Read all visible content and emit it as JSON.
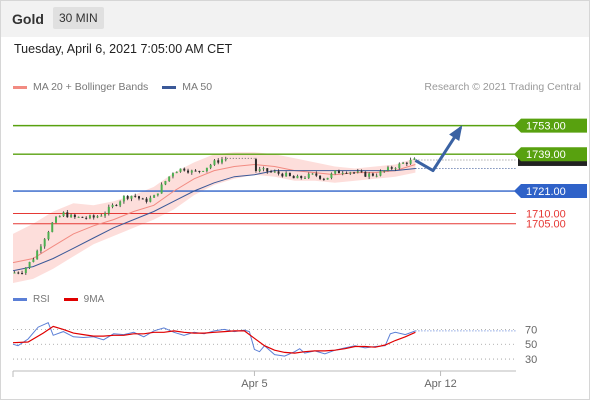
{
  "header": {
    "instrument": "Gold",
    "timeframe": "30 MIN"
  },
  "datetime": "Tuesday, April 6, 2021 7:05:00 AM CET",
  "legend": [
    {
      "label": "MA 20 + Bollinger Bands",
      "color": "#f28b82"
    },
    {
      "label": "MA 50",
      "color": "#3b5998"
    }
  ],
  "research": "Research © 2021 Trading Central",
  "colors": {
    "resistance": "#58a10f",
    "pivot": "#2f62c8",
    "support": "#e53935",
    "ma20": "#f28b82",
    "ma50": "#3b5998",
    "band": "#fdd8d5",
    "rsi": "#5b7fd6",
    "rsi_ma": "#e00000",
    "arrow": "#3a62a3"
  },
  "chart_data": [
    {
      "type": "candlestick",
      "ylim": [
        1676,
        1767
      ],
      "xlim": [
        0,
        100
      ],
      "x_ticks": [
        {
          "x": 48,
          "label": "Apr 5"
        },
        {
          "x": 85,
          "label": "Apr 12"
        }
      ],
      "levels": [
        {
          "value": 1753.0,
          "label": "1753.00",
          "kind": "resistance",
          "style": "tag"
        },
        {
          "value": 1739.0,
          "label": "1739.00",
          "kind": "resistance",
          "style": "tag"
        },
        {
          "value": 1721.0,
          "label": "1721.00",
          "kind": "pivot",
          "style": "tag"
        },
        {
          "value": 1710.0,
          "label": "1710.00",
          "kind": "support",
          "style": "text"
        },
        {
          "value": 1705.0,
          "label": "1705.00",
          "kind": "support",
          "style": "text"
        }
      ],
      "last_price": 1736.2,
      "scenario_path": [
        [
          80,
          1736
        ],
        [
          83.5,
          1731
        ],
        [
          89,
          1752
        ]
      ],
      "close_path": [
        [
          0,
          1681
        ],
        [
          2,
          1682
        ],
        [
          4,
          1688
        ],
        [
          6,
          1697
        ],
        [
          8,
          1706
        ],
        [
          10,
          1710
        ],
        [
          12,
          1708
        ],
        [
          14,
          1708
        ],
        [
          16,
          1708
        ],
        [
          18,
          1710
        ],
        [
          20,
          1714
        ],
        [
          22,
          1718
        ],
        [
          24,
          1719
        ],
        [
          26,
          1716
        ],
        [
          28,
          1718
        ],
        [
          30,
          1725
        ],
        [
          32,
          1731
        ],
        [
          34,
          1732
        ],
        [
          36,
          1730
        ],
        [
          38,
          1732
        ],
        [
          40,
          1735
        ],
        [
          42,
          1737
        ],
        [
          44,
          1735
        ],
        [
          46,
          1735
        ],
        [
          48,
          1731
        ],
        [
          50,
          1731
        ],
        [
          52,
          1730
        ],
        [
          54,
          1729
        ],
        [
          56,
          1727
        ],
        [
          58,
          1728
        ],
        [
          60,
          1729
        ],
        [
          62,
          1727
        ],
        [
          64,
          1730
        ],
        [
          66,
          1731
        ],
        [
          68,
          1730
        ],
        [
          70,
          1729
        ],
        [
          72,
          1729
        ],
        [
          74,
          1731
        ],
        [
          76,
          1733
        ],
        [
          78,
          1735
        ],
        [
          80,
          1736.2
        ]
      ],
      "gaps": [
        [
          42.5,
          48
        ]
      ],
      "ma20": [
        [
          0,
          1686
        ],
        [
          4,
          1688
        ],
        [
          8,
          1694
        ],
        [
          12,
          1700
        ],
        [
          16,
          1704
        ],
        [
          20,
          1707
        ],
        [
          24,
          1711
        ],
        [
          28,
          1714
        ],
        [
          32,
          1721
        ],
        [
          36,
          1727
        ],
        [
          40,
          1731
        ],
        [
          44,
          1733
        ],
        [
          48,
          1734
        ],
        [
          52,
          1733
        ],
        [
          56,
          1731
        ],
        [
          60,
          1730
        ],
        [
          64,
          1729
        ],
        [
          68,
          1730
        ],
        [
          72,
          1730
        ],
        [
          76,
          1731
        ],
        [
          80,
          1734
        ]
      ],
      "ma50": [
        [
          0,
          1682
        ],
        [
          4,
          1684
        ],
        [
          8,
          1688
        ],
        [
          12,
          1693
        ],
        [
          16,
          1698
        ],
        [
          20,
          1703
        ],
        [
          24,
          1707
        ],
        [
          28,
          1711
        ],
        [
          32,
          1716
        ],
        [
          36,
          1721
        ],
        [
          40,
          1725
        ],
        [
          44,
          1728
        ],
        [
          48,
          1729
        ],
        [
          52,
          1731
        ],
        [
          56,
          1731
        ],
        [
          60,
          1731
        ],
        [
          64,
          1731
        ],
        [
          68,
          1731
        ],
        [
          72,
          1731
        ],
        [
          76,
          1731
        ],
        [
          80,
          1732
        ]
      ],
      "bb_upper": [
        [
          0,
          1700
        ],
        [
          4,
          1705
        ],
        [
          8,
          1711
        ],
        [
          12,
          1715
        ],
        [
          16,
          1714
        ],
        [
          20,
          1716
        ],
        [
          24,
          1719
        ],
        [
          28,
          1723
        ],
        [
          32,
          1730
        ],
        [
          36,
          1735
        ],
        [
          40,
          1739
        ],
        [
          44,
          1740
        ],
        [
          48,
          1740
        ],
        [
          52,
          1739
        ],
        [
          56,
          1737
        ],
        [
          60,
          1735
        ],
        [
          64,
          1733
        ],
        [
          68,
          1732
        ],
        [
          72,
          1733
        ],
        [
          76,
          1734
        ],
        [
          80,
          1737
        ]
      ],
      "bb_lower": [
        [
          0,
          1676
        ],
        [
          4,
          1678
        ],
        [
          8,
          1683
        ],
        [
          12,
          1689
        ],
        [
          16,
          1695
        ],
        [
          20,
          1699
        ],
        [
          24,
          1703
        ],
        [
          28,
          1707
        ],
        [
          32,
          1712
        ],
        [
          36,
          1719
        ],
        [
          40,
          1724
        ],
        [
          44,
          1727
        ],
        [
          48,
          1729
        ],
        [
          52,
          1728
        ],
        [
          56,
          1726
        ],
        [
          60,
          1726
        ],
        [
          64,
          1725
        ],
        [
          68,
          1726
        ],
        [
          72,
          1727
        ],
        [
          76,
          1728
        ],
        [
          80,
          1730
        ]
      ]
    },
    {
      "type": "line",
      "title": "RSI",
      "ylim": [
        18,
        88
      ],
      "y_ticks": [
        70,
        50,
        30
      ],
      "series": [
        {
          "name": "RSI",
          "values": [
            [
              0,
              50
            ],
            [
              1,
              48
            ],
            [
              3,
              57
            ],
            [
              5,
              73
            ],
            [
              7,
              79
            ],
            [
              8,
              62
            ],
            [
              10,
              67
            ],
            [
              12,
              60
            ],
            [
              14,
              59
            ],
            [
              16,
              60
            ],
            [
              18,
              56
            ],
            [
              20,
              64
            ],
            [
              22,
              63
            ],
            [
              24,
              66
            ],
            [
              26,
              60
            ],
            [
              28,
              68
            ],
            [
              30,
              72
            ],
            [
              32,
              66
            ],
            [
              34,
              62
            ],
            [
              36,
              66
            ],
            [
              38,
              64
            ],
            [
              40,
              68
            ],
            [
              42,
              70
            ],
            [
              44,
              67
            ],
            [
              46,
              69
            ],
            [
              47,
              67
            ],
            [
              48,
              43
            ],
            [
              49,
              40
            ],
            [
              50,
              48
            ],
            [
              52,
              36
            ],
            [
              54,
              34
            ],
            [
              56,
              40
            ],
            [
              57,
              44
            ],
            [
              58,
              38
            ],
            [
              60,
              41
            ],
            [
              62,
              37
            ],
            [
              64,
              42
            ],
            [
              66,
              45
            ],
            [
              68,
              48
            ],
            [
              70,
              45
            ],
            [
              72,
              47
            ],
            [
              74,
              48
            ],
            [
              75,
              64
            ],
            [
              76,
              66
            ],
            [
              78,
              63
            ],
            [
              80,
              68
            ]
          ]
        },
        {
          "name": "9MA",
          "values": [
            [
              0,
              52
            ],
            [
              3,
              53
            ],
            [
              6,
              65
            ],
            [
              8,
              74
            ],
            [
              10,
              70
            ],
            [
              12,
              65
            ],
            [
              14,
              63
            ],
            [
              16,
              61
            ],
            [
              18,
              61
            ],
            [
              20,
              62
            ],
            [
              22,
              62
            ],
            [
              24,
              64
            ],
            [
              26,
              64
            ],
            [
              28,
              66
            ],
            [
              30,
              66
            ],
            [
              32,
              68
            ],
            [
              34,
              66
            ],
            [
              36,
              65
            ],
            [
              38,
              65
            ],
            [
              40,
              66
            ],
            [
              42,
              67
            ],
            [
              44,
              68
            ],
            [
              46,
              68
            ],
            [
              48,
              58
            ],
            [
              50,
              48
            ],
            [
              52,
              42
            ],
            [
              54,
              39
            ],
            [
              56,
              38
            ],
            [
              58,
              40
            ],
            [
              60,
              41
            ],
            [
              62,
              41
            ],
            [
              64,
              42
            ],
            [
              66,
              44
            ],
            [
              68,
              47
            ],
            [
              70,
              47
            ],
            [
              72,
              46
            ],
            [
              74,
              49
            ],
            [
              76,
              55
            ],
            [
              78,
              60
            ],
            [
              80,
              66
            ]
          ]
        }
      ]
    }
  ]
}
